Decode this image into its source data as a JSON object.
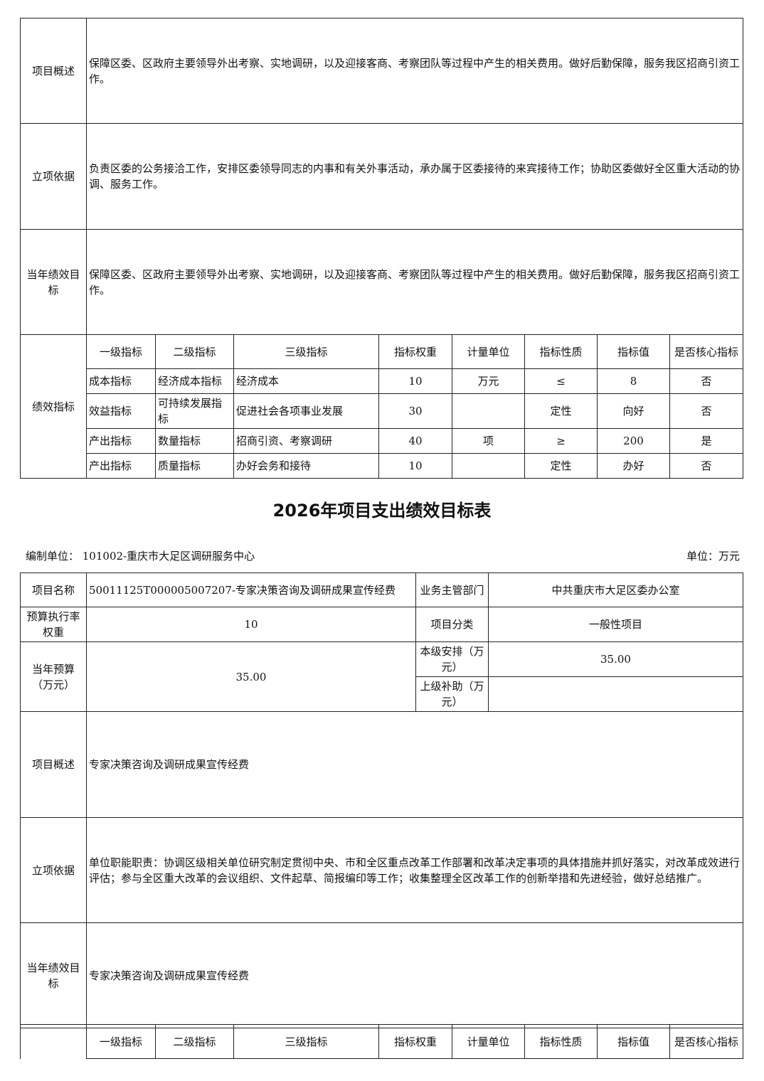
{
  "table1": {
    "overview_label": "项目概述",
    "overview": "保障区委、区政府主要领导外出考察、实地调研，以及迎接客商、考察团队等过程中产生的相关费用。做好后勤保障，服务我区招商引资工作。",
    "basis_label": "立项依据",
    "basis": "负责区委的公务接洽工作，安排区委领导同志的内事和有关外事活动，承办属于区委接待的来宾接待工作；协助区委做好全区重大活动的协调、服务工作。",
    "goal_label": "当年绩效目标",
    "goal": "保障区委、区政府主要领导外出考察、实地调研，以及迎接客商、考察团队等过程中产生的相关费用。做好后勤保障，服务我区招商引资工作。",
    "indicators_label": "绩效指标",
    "headers": [
      "一级指标",
      "二级指标",
      "三级指标",
      "指标权重",
      "计量单位",
      "指标性质",
      "指标值",
      "是否核心指标"
    ],
    "rows": [
      [
        "成本指标",
        "经济成本指标",
        "经济成本",
        "10",
        "万元",
        "≤",
        "8",
        "否"
      ],
      [
        "效益指标",
        "可持续发展指标",
        "促进社会各项事业发展",
        "30",
        "",
        "定性",
        "向好",
        "否"
      ],
      [
        "产出指标",
        "数量指标",
        "招商引资、考察调研",
        "40",
        "项",
        "≥",
        "200",
        "是"
      ],
      [
        "产出指标",
        "质量指标",
        "办好会务和接待",
        "10",
        "",
        "定性",
        "办好",
        "否"
      ]
    ]
  },
  "title": "2026年项目支出绩效目标表",
  "unit_left": "编制单位：  101002-重庆市大足区调研服务中心",
  "unit_right": "单位：万元",
  "table2": {
    "name_label": "项目名称",
    "name": "50011125T000005007207-专家决策咨询及调研成果宣传经费",
    "dept_label": "业务主管部门",
    "dept": "中共重庆市大足区委办公室",
    "weight_label": "预算执行率权重",
    "weight": "10",
    "category_label": "项目分类",
    "category": "一般性项目",
    "budget_label": "当年预算（万元）",
    "budget": "35.00",
    "local_label": "本级安排（万元）",
    "local": "35.00",
    "upper_label": "上级补助（万元）",
    "upper": "",
    "overview_label": "项目概述",
    "overview": "专家决策咨询及调研成果宣传经费",
    "basis_label": "立项依据",
    "basis": "单位职能职责：协调区级相关单位研究制定贯彻中央、市和全区重点改革工作部署和改革决定事项的具体措施并抓好落实，对改革成效进行评估；参与全区重大改革的会议组织、文件起草、简报编印等工作；收集整理全区改革工作的创新举措和先进经验，做好总结推广。",
    "goal_label": "当年绩效目标",
    "goal": "专家决策咨询及调研成果宣传经费",
    "headers": [
      "一级指标",
      "二级指标",
      "三级指标",
      "指标权重",
      "计量单位",
      "指标性质",
      "指标值",
      "是否核心指标"
    ]
  }
}
